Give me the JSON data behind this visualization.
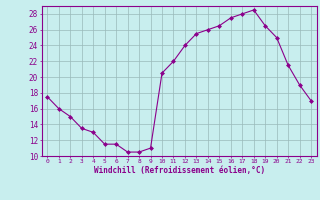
{
  "x": [
    0,
    1,
    2,
    3,
    4,
    5,
    6,
    7,
    8,
    9,
    10,
    11,
    12,
    13,
    14,
    15,
    16,
    17,
    18,
    19,
    20,
    21,
    22,
    23
  ],
  "y": [
    17.5,
    16.0,
    15.0,
    13.5,
    13.0,
    11.5,
    11.5,
    10.5,
    10.5,
    11.0,
    20.5,
    22.0,
    24.0,
    25.5,
    26.0,
    26.5,
    27.5,
    28.0,
    28.5,
    26.5,
    25.0,
    21.5,
    19.0,
    17.0
  ],
  "line_color": "#8B008B",
  "marker": "D",
  "marker_size": 2,
  "bg_color": "#c8eeee",
  "grid_color": "#9ababa",
  "xlabel": "Windchill (Refroidissement éolien,°C)",
  "xlabel_color": "#8B008B",
  "tick_color": "#8B008B",
  "ylim": [
    10,
    29
  ],
  "xlim": [
    -0.5,
    23.5
  ],
  "yticks": [
    10,
    12,
    14,
    16,
    18,
    20,
    22,
    24,
    26,
    28
  ],
  "xticks": [
    0,
    1,
    2,
    3,
    4,
    5,
    6,
    7,
    8,
    9,
    10,
    11,
    12,
    13,
    14,
    15,
    16,
    17,
    18,
    19,
    20,
    21,
    22,
    23
  ]
}
